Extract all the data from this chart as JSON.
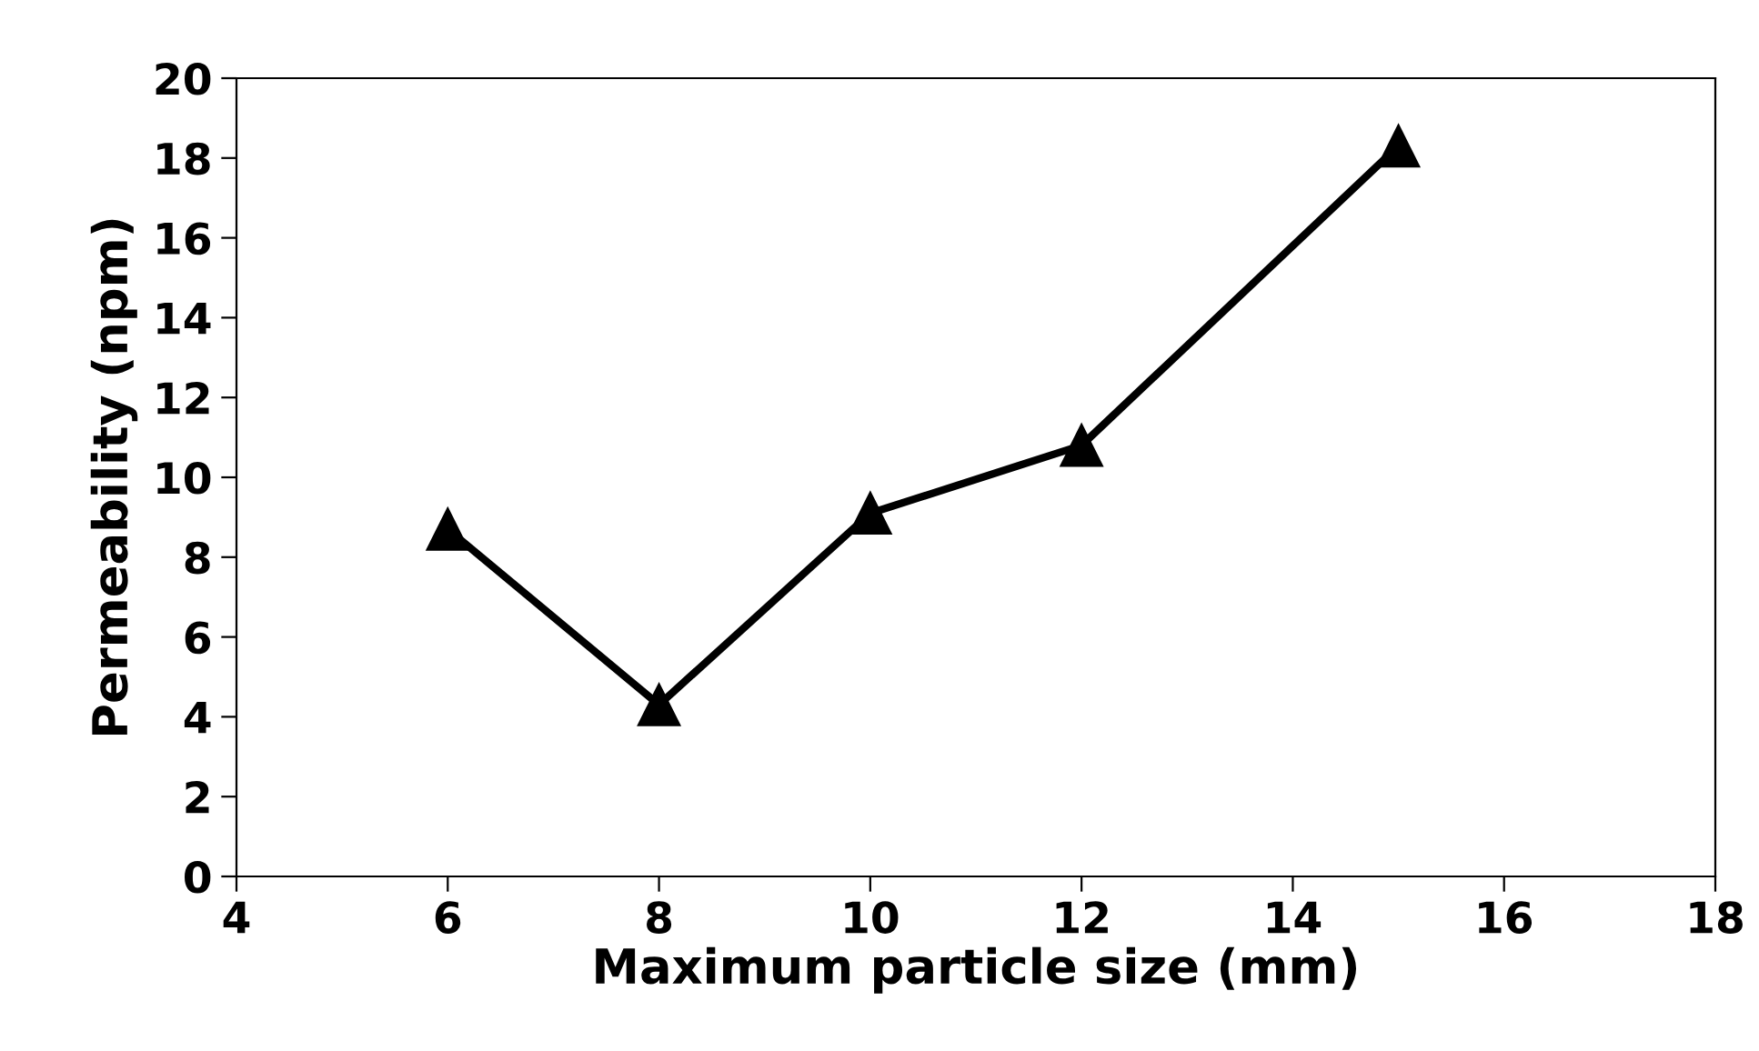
{
  "chart_data": {
    "type": "line",
    "xlabel": "Maximum particle size (mm)",
    "ylabel": "Permeability (npm)",
    "x": [
      6,
      8,
      10,
      12,
      15
    ],
    "series": [
      {
        "color": "#000000",
        "values": [
          8.7,
          4.3,
          9.1,
          10.8,
          18.3
        ]
      }
    ],
    "xlim": [
      4,
      18
    ],
    "xticks": [
      4,
      6,
      8,
      10,
      12,
      14,
      16,
      18
    ],
    "ylim": [
      0,
      20
    ],
    "yticks": [
      0,
      2,
      4,
      6,
      8,
      10,
      12,
      14,
      16,
      18,
      20
    ],
    "marker": "triangle",
    "line_style": "solid"
  }
}
